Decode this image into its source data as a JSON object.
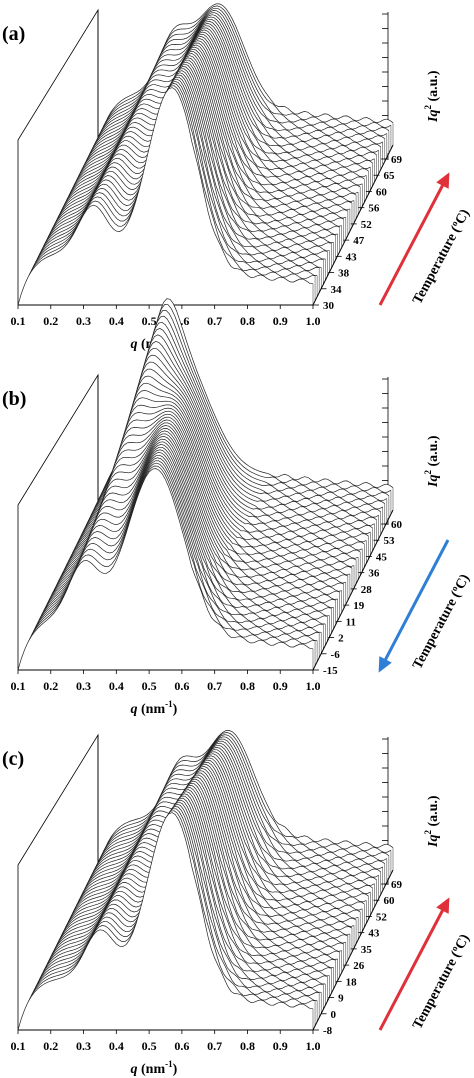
{
  "chart_data": [
    {
      "type": "line",
      "panel_label": "(a)",
      "xlabel": "q (nm⁻¹)",
      "ylabel": "Iq² (a.u.)",
      "zlabel": "Temperature (°C)",
      "x_ticks": [
        "0.1",
        "0.2",
        "0.3",
        "0.4",
        "0.5",
        "0.6",
        "0.7",
        "0.8",
        "0.9",
        "1.0"
      ],
      "xlim": [
        0.1,
        1.0
      ],
      "temperature_ticks": [
        "30",
        "34",
        "38",
        "43",
        "47",
        "52",
        "56",
        "60",
        "65",
        "69"
      ],
      "arrow_direction": "increasing",
      "arrow_color": "#e0303a",
      "series_count": 40,
      "peak_q_first": 0.47,
      "peak_q_last": 0.57,
      "shoulder_q": 0.33
    },
    {
      "type": "line",
      "panel_label": "(b)",
      "xlabel": "q (nm⁻¹)",
      "ylabel": "Iq² (a.u.)",
      "zlabel": "Temperature (°C)",
      "x_ticks": [
        "0.1",
        "0.2",
        "0.3",
        "0.4",
        "0.5",
        "0.6",
        "0.7",
        "0.8",
        "0.9",
        "1.0"
      ],
      "xlim": [
        0.1,
        1.0
      ],
      "temperature_ticks": [
        "-15",
        "-6",
        "2",
        "11",
        "19",
        "28",
        "36",
        "45",
        "53",
        "60"
      ],
      "arrow_direction": "decreasing",
      "arrow_color": "#2f7fd6",
      "series_count": 40,
      "peak_q_first": 0.36,
      "peak_q_last": 0.52,
      "shoulder_q": 0.3
    },
    {
      "type": "line",
      "panel_label": "(c)",
      "xlabel": "q (nm⁻¹)",
      "ylabel": "Iq² (a.u.)",
      "zlabel": "Temperature (°C)",
      "x_ticks": [
        "0.1",
        "0.2",
        "0.3",
        "0.4",
        "0.5",
        "0.6",
        "0.7",
        "0.8",
        "0.9",
        "1.0"
      ],
      "xlim": [
        0.1,
        1.0
      ],
      "temperature_ticks": [
        "-8",
        "0",
        "9",
        "18",
        "26",
        "35",
        "43",
        "52",
        "60",
        "69"
      ],
      "arrow_direction": "increasing",
      "arrow_color": "#e0303a",
      "series_count": 40,
      "peak_q_first": 0.5,
      "peak_q_last": 0.57,
      "shoulder_q": 0.35
    }
  ]
}
